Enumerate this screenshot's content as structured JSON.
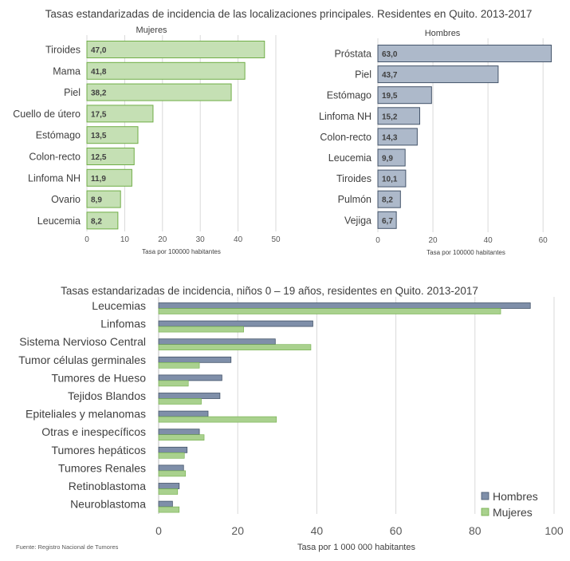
{
  "page": {
    "top_title": "Tasas estandarizadas de incidencia de las localizaciones principales. Residentes en Quito. 2013-2017",
    "source": "Fuente: Registro Nacional de Tumores"
  },
  "colors": {
    "mujeres_fill": "#c5e0b4",
    "mujeres_stroke": "#70ad47",
    "hombres_fill": "#adb9ca",
    "hombres_stroke": "#44546a",
    "bottom_hombres": "#7f8fa9",
    "bottom_mujeres": "#a9d18e",
    "grid": "#d9d9d9"
  },
  "chart_data": [
    {
      "type": "bar",
      "orientation": "horizontal",
      "title": "Mujeres",
      "xlabel": "Tasa por 100000 habitantes",
      "categories": [
        "Tiroides",
        "Mama",
        "Piel",
        "Cuello de útero",
        "Estómago",
        "Colon-recto",
        "Linfoma NH",
        "Ovario",
        "Leucemia"
      ],
      "values": [
        47.0,
        41.8,
        38.2,
        17.5,
        13.5,
        12.5,
        11.9,
        8.9,
        8.2
      ],
      "value_labels": [
        "47,0",
        "41,8",
        "38,2",
        "17,5",
        "13,5",
        "12,5",
        "11,9",
        "8,9",
        "8,2"
      ],
      "xlim": [
        0,
        50
      ],
      "xticks": [
        0,
        10,
        20,
        30,
        40,
        50
      ],
      "grid": true
    },
    {
      "type": "bar",
      "orientation": "horizontal",
      "title": "Hombres",
      "xlabel": "Tasa por 100000 habitantes",
      "categories": [
        "Próstata",
        "Piel",
        "Estómago",
        "Linfoma NH",
        "Colon-recto",
        "Leucemia",
        "Tiroides",
        "Pulmón",
        "Vejiga"
      ],
      "values": [
        63.0,
        43.7,
        19.5,
        15.2,
        14.3,
        9.9,
        10.1,
        8.2,
        6.7
      ],
      "value_labels": [
        "63,0",
        "43,7",
        "19,5",
        "15,2",
        "14,3",
        "9,9",
        "10,1",
        "8,2",
        "6,7"
      ],
      "xlim": [
        0,
        64
      ],
      "xticks": [
        0,
        20,
        40,
        60
      ],
      "grid": true
    },
    {
      "type": "bar",
      "orientation": "horizontal",
      "title": "Tasas estandarizadas de incidencia, niños 0 – 19 años, residentes en Quito. 2013-2017",
      "xlabel": "Tasa por 1 000 000 habitantes",
      "categories": [
        "Leucemias",
        "Linfomas",
        "Sistema Nervioso Central",
        "Tumor células germinales",
        "Tumores de Hueso",
        "Tejidos Blandos",
        "Epiteliales y melanomas",
        "Otras e inespecíficos",
        "Tumores hepáticos",
        "Tumores Renales",
        "Retinoblastoma",
        "Neuroblastoma"
      ],
      "series": [
        {
          "name": "Hombres",
          "values": [
            94,
            39,
            29.5,
            18.3,
            16,
            15.5,
            12.5,
            10.3,
            7.2,
            6.3,
            5.2,
            3.5
          ]
        },
        {
          "name": "Mujeres",
          "values": [
            86.5,
            21.5,
            38.5,
            10.3,
            7.5,
            10.8,
            29.8,
            11.5,
            6.5,
            6.8,
            4.8,
            5.2
          ]
        }
      ],
      "xlim": [
        0,
        100
      ],
      "xticks": [
        0,
        20,
        40,
        60,
        80,
        100
      ],
      "legend": "bottom-right",
      "grid": true
    }
  ]
}
